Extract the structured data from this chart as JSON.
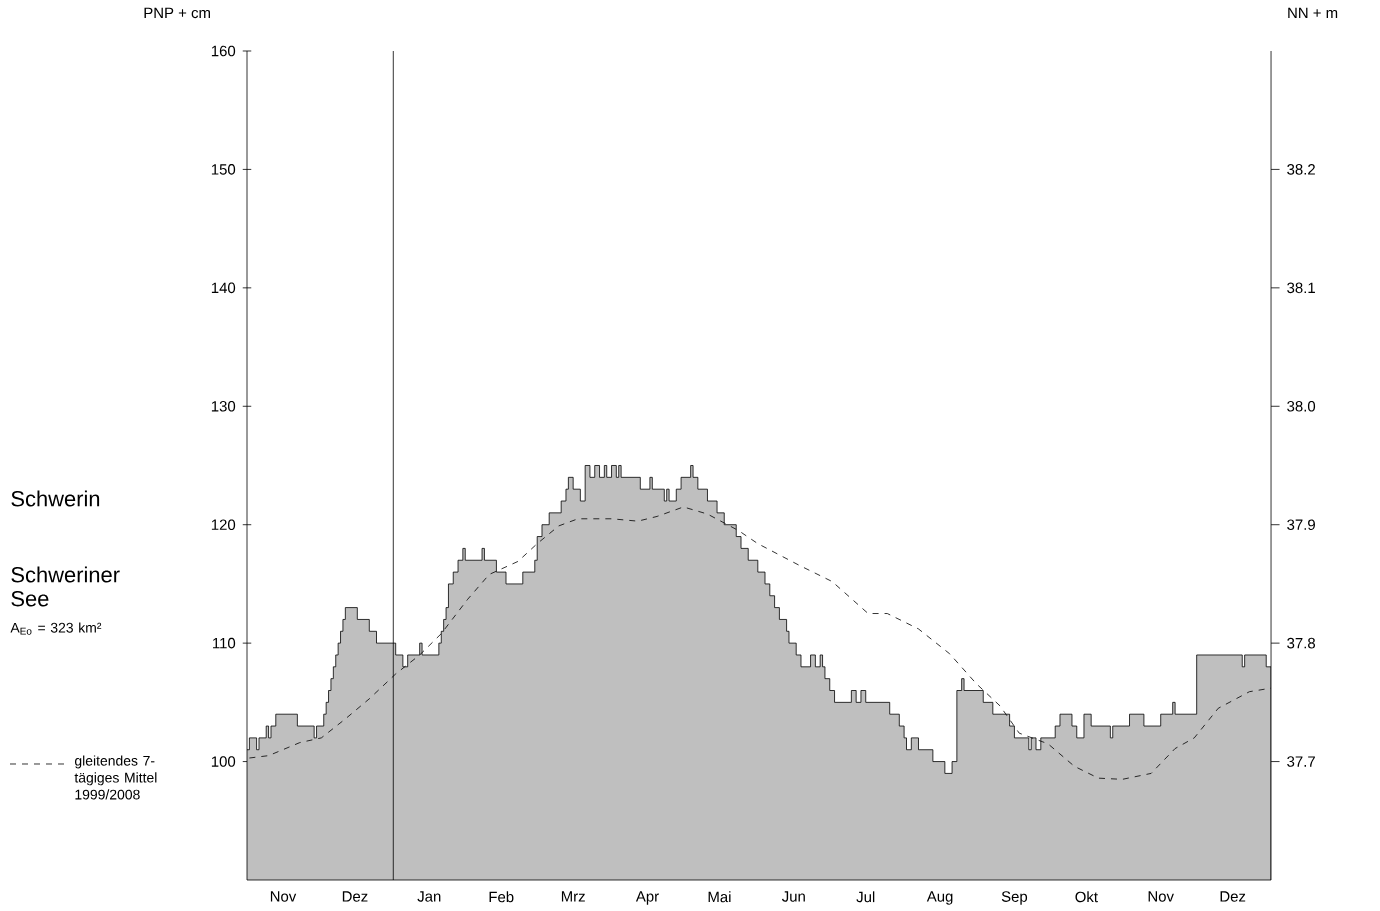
{
  "chart_data": {
    "type": "area",
    "ylabel": "PNP + cm",
    "y2label": "NN + m",
    "annotations": [
      "Schwerin",
      "Schweriner See",
      "A$_{Eo}$ = 323 km²"
    ],
    "xlim": [
      "2007-11-01",
      "2009-01-01"
    ],
    "ylim": [
      90,
      160
    ],
    "y2lim": [
      37.6,
      38.3
    ],
    "xticks": [
      {
        "value": "2007-11-16",
        "label": "Nov"
      },
      {
        "value": "2007-12-16",
        "label": "Dez"
      },
      {
        "value": "2008-01-16",
        "label": "Jan"
      },
      {
        "value": "2008-02-15",
        "label": "Feb"
      },
      {
        "value": "2008-03-16",
        "label": "Mrz"
      },
      {
        "value": "2008-04-16",
        "label": "Apr"
      },
      {
        "value": "2008-05-16",
        "label": "Mai"
      },
      {
        "value": "2008-06-16",
        "label": "Jun"
      },
      {
        "value": "2008-07-16",
        "label": "Jul"
      },
      {
        "value": "2008-08-16",
        "label": "Aug"
      },
      {
        "value": "2008-09-16",
        "label": "Sep"
      },
      {
        "value": "2008-10-16",
        "label": "Okt"
      },
      {
        "value": "2008-11-16",
        "label": "Nov"
      },
      {
        "value": "2008-12-16",
        "label": "Dez"
      }
    ],
    "yticks": [
      100,
      110,
      120,
      130,
      140,
      150,
      160
    ],
    "y2ticks": [
      37.7,
      37.8,
      37.9,
      {
        "value": 38.0,
        "label": "38.0"
      },
      38.1,
      38.2
    ],
    "ref_lines": [
      {
        "axis": "x",
        "value": "2008-01-01",
        "color": "#000000"
      }
    ],
    "legend": "left",
    "series": [
      {
        "color": "#000000",
        "x": [
          "2007-11-01",
          "2007-11-02",
          "2007-11-05",
          "2007-11-06",
          "2007-11-09",
          "2007-11-10",
          "2007-11-11",
          "2007-11-13",
          "2007-11-22",
          "2007-11-29",
          "2007-11-30",
          "2007-12-03",
          "2007-12-04",
          "2007-12-05",
          "2007-12-06",
          "2007-12-07",
          "2007-12-08",
          "2007-12-09",
          "2007-12-10",
          "2007-12-11",
          "2007-12-12",
          "2007-12-17",
          "2007-12-22",
          "2007-12-25",
          "2008-01-02",
          "2008-01-05",
          "2008-01-07",
          "2008-01-12",
          "2008-01-13",
          "2008-01-20",
          "2008-01-21",
          "2008-01-22",
          "2008-01-23",
          "2008-01-24",
          "2008-01-26",
          "2008-01-28",
          "2008-01-30",
          "2008-01-31",
          "2008-02-07",
          "2008-02-08",
          "2008-02-13",
          "2008-02-17",
          "2008-02-24",
          "2008-02-29",
          "2008-03-01",
          "2008-03-03",
          "2008-03-06",
          "2008-03-11",
          "2008-03-13",
          "2008-03-14",
          "2008-03-16",
          "2008-03-19",
          "2008-03-21",
          "2008-03-23",
          "2008-03-25",
          "2008-03-27",
          "2008-03-29",
          "2008-03-30",
          "2008-04-01",
          "2008-04-03",
          "2008-04-04",
          "2008-04-05",
          "2008-04-13",
          "2008-04-17",
          "2008-04-18",
          "2008-04-23",
          "2008-04-24",
          "2008-04-25",
          "2008-04-28",
          "2008-04-30",
          "2008-05-04",
          "2008-05-05",
          "2008-05-07",
          "2008-05-11",
          "2008-05-15",
          "2008-05-18",
          "2008-05-23",
          "2008-05-25",
          "2008-05-28",
          "2008-06-01",
          "2008-06-04",
          "2008-06-06",
          "2008-06-08",
          "2008-06-10",
          "2008-06-13",
          "2008-06-14",
          "2008-06-17",
          "2008-06-19",
          "2008-06-23",
          "2008-06-25",
          "2008-06-27",
          "2008-06-28",
          "2008-06-29",
          "2008-07-01",
          "2008-07-03",
          "2008-07-10",
          "2008-07-12",
          "2008-07-14",
          "2008-07-16",
          "2008-07-26",
          "2008-07-30",
          "2008-08-01",
          "2008-08-02",
          "2008-08-04",
          "2008-08-07",
          "2008-08-13",
          "2008-08-18",
          "2008-08-21",
          "2008-08-23",
          "2008-08-25",
          "2008-08-26",
          "2008-09-03",
          "2008-09-07",
          "2008-09-14",
          "2008-09-16",
          "2008-09-22",
          "2008-09-23",
          "2008-09-25",
          "2008-09-27",
          "2008-10-03",
          "2008-10-05",
          "2008-10-10",
          "2008-10-12",
          "2008-10-15",
          "2008-10-18",
          "2008-10-26",
          "2008-10-27",
          "2008-11-03",
          "2008-11-09",
          "2008-11-16",
          "2008-11-21",
          "2008-11-22",
          "2008-12-01",
          "2008-12-20",
          "2008-12-21",
          "2008-12-30",
          "2009-01-01"
        ],
        "values": [
          101,
          102,
          101,
          102,
          103,
          102,
          103,
          104,
          103,
          102,
          103,
          104,
          105,
          106,
          107,
          108,
          109,
          110,
          111,
          112,
          113,
          112,
          111,
          110,
          109,
          108,
          109,
          110,
          109,
          110,
          111,
          112,
          113,
          115,
          116,
          117,
          118,
          117,
          118,
          117,
          116,
          115,
          116,
          117,
          119,
          120,
          121,
          122,
          123,
          124,
          123,
          122,
          125,
          124,
          125,
          124,
          125,
          124,
          125,
          124,
          125,
          124,
          123,
          124,
          123,
          122,
          123,
          122,
          123,
          124,
          125,
          124,
          123,
          122,
          121,
          120,
          119,
          118,
          117,
          116,
          115,
          114,
          113,
          112,
          111,
          110,
          109,
          108,
          109,
          108,
          109,
          108,
          107,
          106,
          105,
          106,
          105,
          106,
          105,
          104,
          103,
          102,
          101,
          102,
          101,
          100,
          99,
          100,
          106,
          107,
          106,
          105,
          104,
          103,
          102,
          101,
          102,
          101,
          102,
          103,
          104,
          103,
          102,
          104,
          103,
          102,
          103,
          104,
          103,
          104,
          105,
          104,
          109,
          108,
          109,
          108,
          108
        ]
      },
      {
        "type": "line",
        "name": "gleitendes 7-tägiges Mittel 1999/2008",
        "color": "#000000",
        "line_style": "dashed",
        "x": [
          "2007-11-02",
          "2007-11-10",
          "2007-11-23",
          "2007-12-02",
          "2007-12-12",
          "2007-12-22",
          "2008-01-02",
          "2008-01-12",
          "2008-01-21",
          "2008-02-01",
          "2008-02-10",
          "2008-02-22",
          "2008-03-01",
          "2008-03-10",
          "2008-03-18",
          "2008-04-01",
          "2008-04-12",
          "2008-04-20",
          "2008-05-01",
          "2008-05-11",
          "2008-05-24",
          "2008-06-01",
          "2008-06-18",
          "2008-07-02",
          "2008-07-17",
          "2008-07-25",
          "2008-08-07",
          "2008-08-20",
          "2008-08-31",
          "2008-09-10",
          "2008-09-18",
          "2008-09-30",
          "2008-10-11",
          "2008-10-21",
          "2008-10-31",
          "2008-11-12",
          "2008-11-22",
          "2008-11-30",
          "2008-12-10",
          "2008-12-23",
          "2009-01-01"
        ],
        "values": [
          100.3,
          100.5,
          101.6,
          102,
          103.6,
          105.3,
          107.4,
          109,
          110.8,
          113.7,
          115.8,
          116.9,
          118.4,
          119.9,
          120.5,
          120.5,
          120.3,
          120.7,
          121.5,
          120.9,
          119.5,
          118.4,
          116.6,
          115.2,
          112.5,
          112.5,
          111.2,
          109.1,
          106.6,
          104.7,
          102.4,
          101.5,
          99.6,
          98.6,
          98.5,
          99,
          101.1,
          102,
          104.5,
          105.9,
          106.2
        ]
      }
    ]
  }
}
